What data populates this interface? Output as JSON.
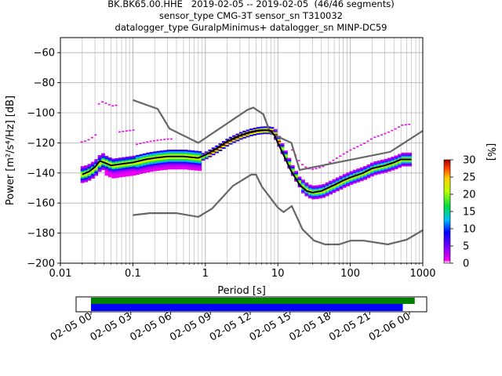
{
  "title": {
    "line1": "BK.BK65.00.HHE   2019-02-05 -- 2019-02-05  (46/46 segments)",
    "line2": "sensor_type CMG-3T sensor_sn T310032",
    "line3": "datalogger_type GuralpMinimus+ datalogger_sn MINP-DC59"
  },
  "chart_data": {
    "type": "heatmap",
    "xlabel": "Period [s]",
    "ylabel": "Power [m²/s⁴/Hz] [dB]",
    "x_scale": "log",
    "xlim": [
      0.01,
      1000
    ],
    "ylim": [
      -200,
      -50
    ],
    "x_ticks": [
      "0.01",
      "0.1",
      "1",
      "10",
      "100",
      "1000"
    ],
    "y_ticks": [
      "−200",
      "−180",
      "−160",
      "−140",
      "−120",
      "−100",
      "−80",
      "−60"
    ],
    "grid": true,
    "colorbar": {
      "label": "[%]",
      "range": [
        0,
        30
      ],
      "ticks": [
        "0",
        "5",
        "10",
        "15",
        "20",
        "25",
        "30"
      ]
    },
    "mode_curve": {
      "period": [
        0.02,
        0.025,
        0.03,
        0.035,
        0.04,
        0.05,
        0.07,
        0.1,
        0.15,
        0.2,
        0.3,
        0.5,
        0.8,
        1,
        1.5,
        2,
        3,
        4,
        5,
        6,
        7,
        8,
        9,
        10,
        12,
        15,
        20,
        25,
        30,
        40,
        60,
        80,
        100,
        150,
        200,
        300,
        400,
        500,
        700
      ],
      "power": [
        -141,
        -139,
        -136,
        -132,
        -133,
        -135,
        -134,
        -133,
        -131,
        -130,
        -129,
        -129,
        -130,
        -128,
        -123,
        -119,
        -115,
        -113,
        -112,
        -111.5,
        -111.5,
        -112,
        -115,
        -120,
        -128,
        -138,
        -148,
        -152,
        -153,
        -152,
        -148,
        -145,
        -143,
        -140,
        -137,
        -135,
        -133,
        -131,
        -131
      ]
    },
    "nhnm": {
      "period": [
        0.1,
        0.22,
        0.32,
        0.8,
        3.8,
        4.6,
        6.3,
        7.9,
        15.4,
        20,
        354.8,
        1000
      ],
      "power": [
        -91.5,
        -97.4,
        -110.5,
        -120,
        -98,
        -96.5,
        -101,
        -113.5,
        -120,
        -138,
        -126,
        -112
      ]
    },
    "nlnm": {
      "period": [
        0.1,
        0.17,
        0.4,
        0.8,
        1.24,
        2.4,
        4.3,
        5,
        6,
        10,
        12,
        15.6,
        21.9,
        31.6,
        45,
        70,
        101,
        154,
        328,
        600,
        1000
      ],
      "power": [
        -168,
        -166.7,
        -166.7,
        -169.2,
        -163.7,
        -148.6,
        -141.1,
        -141.1,
        -149,
        -163,
        -166,
        -162,
        -177.5,
        -185,
        -187.5,
        -187.5,
        -185,
        -185,
        -187.5,
        -184.4,
        -178
      ]
    },
    "timeline": {
      "ticks": [
        "02-05 00",
        "02-05 03",
        "02-05 06",
        "02-05 09",
        "02-05 12",
        "02-05 15",
        "02-05 18",
        "02-05 21",
        "02-06 00"
      ],
      "bars": [
        {
          "color": "#008000",
          "start_h": 0,
          "end_h": 24.4
        },
        {
          "color": "#0000ff",
          "start_h": 0,
          "end_h": 23.5
        }
      ]
    },
    "colors": {
      "mode": "#000000",
      "noise_models": "#666666",
      "grid": "#b0b0b0"
    }
  }
}
